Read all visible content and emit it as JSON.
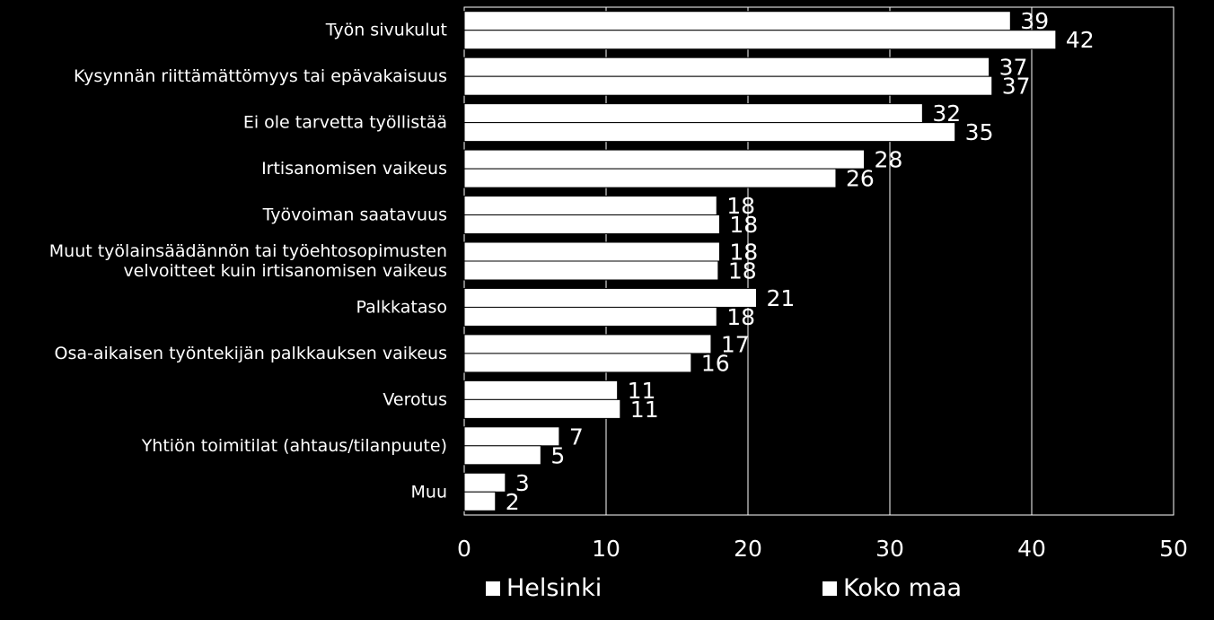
{
  "chart_data": {
    "type": "bar",
    "orientation": "horizontal",
    "categories": [
      "Työn sivukulut",
      "Kysynnän riittämättömyys tai epävakaisuus",
      "Ei ole tarvetta työllistää",
      "Irtisanomisen vaikeus",
      "Työvoiman saatavuus",
      "Muut työlainsäädännön tai työehtosopimusten velvoitteet kuin irtisanomisen vaikeus",
      "Palkkataso",
      "Osa-aikaisen työntekijän palkkauksen vaikeus",
      "Verotus",
      "Yhtiön toimitilat (ahtaus/tilanpuute)",
      "Muu"
    ],
    "category_lines": [
      [
        "Työn sivukulut"
      ],
      [
        "Kysynnän riittämättömyys tai epävakaisuus"
      ],
      [
        "Ei ole tarvetta työllistää"
      ],
      [
        "Irtisanomisen vaikeus"
      ],
      [
        "Työvoiman saatavuus"
      ],
      [
        "Muut työlainsäädännön tai työehtosopimusten",
        "velvoitteet kuin irtisanomisen vaikeus"
      ],
      [
        "Palkkataso"
      ],
      [
        "Osa-aikaisen työntekijän palkkauksen vaikeus"
      ],
      [
        "Verotus"
      ],
      [
        "Yhtiön toimitilat (ahtaus/tilanpuute)"
      ],
      [
        "Muu"
      ]
    ],
    "series": [
      {
        "name": "Helsinki",
        "values": [
          39,
          37,
          32,
          28,
          18,
          18,
          21,
          17,
          11,
          7,
          3
        ],
        "plotted": [
          38.5,
          37.0,
          32.3,
          28.2,
          17.8,
          18.0,
          20.6,
          17.4,
          10.8,
          6.7,
          2.9
        ]
      },
      {
        "name": "Koko maa",
        "values": [
          42,
          37,
          35,
          26,
          18,
          18,
          18,
          16,
          11,
          5,
          2
        ],
        "plotted": [
          41.7,
          37.2,
          34.6,
          26.2,
          18.0,
          17.9,
          17.8,
          16.0,
          11.0,
          5.4,
          2.2
        ]
      }
    ],
    "xlim": [
      0,
      50
    ],
    "xticks": [
      0,
      10,
      20,
      30,
      40,
      50
    ],
    "grid": true,
    "legend_position": "bottom",
    "colors": {
      "background": "#000000",
      "bar": "#ffffff",
      "grid": "#ffffff",
      "text": "#ffffff"
    }
  },
  "legend": {
    "helsinki": "Helsinki",
    "koko_maa": "Koko maa"
  }
}
